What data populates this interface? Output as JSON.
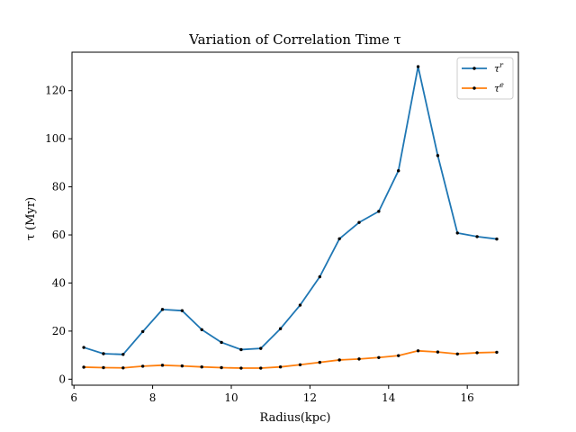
{
  "chart_data": {
    "type": "line",
    "title": "Variation of Correlation Time τ",
    "xlabel": "Radius(kpc)",
    "ylabel": "τ (Myr)",
    "xlim": [
      5.95,
      17.3
    ],
    "ylim": [
      -2.5,
      136
    ],
    "xticks": [
      6,
      8,
      10,
      12,
      14,
      16
    ],
    "yticks": [
      0,
      20,
      40,
      60,
      80,
      100,
      120
    ],
    "grid": false,
    "legend": "top-right",
    "x": [
      6.25,
      6.75,
      7.25,
      7.75,
      8.25,
      8.75,
      9.25,
      9.75,
      10.25,
      10.75,
      11.25,
      11.75,
      12.25,
      12.75,
      13.25,
      13.75,
      14.25,
      14.75,
      15.25,
      15.75,
      16.25,
      16.75
    ],
    "series": [
      {
        "name": "τ^r",
        "color": "#1f77b4",
        "values": [
          13.2,
          10.6,
          10.3,
          19.8,
          29.0,
          28.5,
          20.6,
          15.3,
          12.3,
          12.8,
          21.0,
          30.8,
          42.6,
          58.4,
          65.2,
          69.8,
          86.7,
          130.0,
          93.0,
          60.8,
          59.3,
          58.3
        ]
      },
      {
        "name": "τ^e",
        "color": "#ff7f0e",
        "values": [
          5.0,
          4.8,
          4.7,
          5.4,
          5.8,
          5.5,
          5.1,
          4.8,
          4.6,
          4.6,
          5.1,
          6.0,
          7.0,
          8.0,
          8.4,
          9.0,
          9.8,
          11.8,
          11.3,
          10.5,
          11.0,
          11.2
        ]
      }
    ]
  }
}
